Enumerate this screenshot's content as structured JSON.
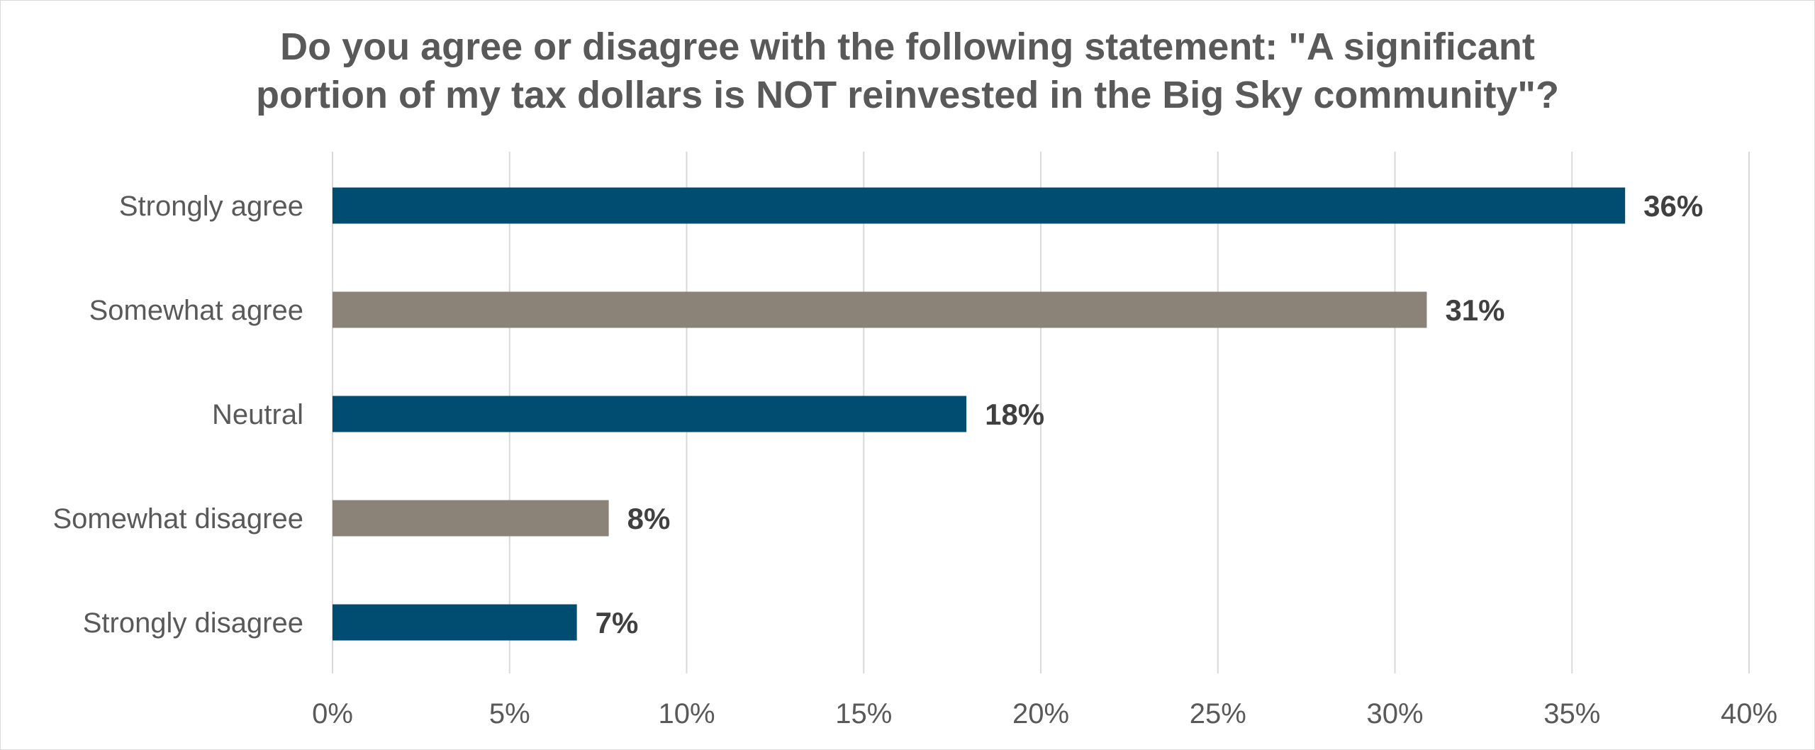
{
  "chart_data": {
    "type": "bar",
    "orientation": "horizontal",
    "title": "Do you agree or disagree with the following statement: \"A significant portion of my tax dollars is NOT reinvested in the Big Sky community\"?",
    "title_lines": [
      "Do you agree or disagree with the following statement: \"A significant",
      "portion of my tax dollars is NOT reinvested in the Big Sky community\"?"
    ],
    "categories": [
      "Strongly agree",
      "Somewhat agree",
      "Neutral",
      "Somewhat disagree",
      "Strongly disagree"
    ],
    "values": [
      36.5,
      30.9,
      17.9,
      7.8,
      6.9
    ],
    "data_labels": [
      "36%",
      "31%",
      "18%",
      "8%",
      "7%"
    ],
    "bar_colors": [
      "#004d71",
      "#8b8377",
      "#004d71",
      "#8b8377",
      "#004d71"
    ],
    "xlim": [
      0,
      40
    ],
    "x_ticks": [
      0,
      5,
      10,
      15,
      20,
      25,
      30,
      35,
      40
    ],
    "x_tick_labels": [
      "0%",
      "5%",
      "10%",
      "15%",
      "20%",
      "25%",
      "30%",
      "35%",
      "40%"
    ],
    "xlabel": "",
    "ylabel": "",
    "grid": true,
    "legend": "none"
  },
  "colors": {
    "primary": "#004d71",
    "secondary": "#8b8377",
    "text": "#595959",
    "data_label": "#404040",
    "grid": "#d9d9d9"
  }
}
